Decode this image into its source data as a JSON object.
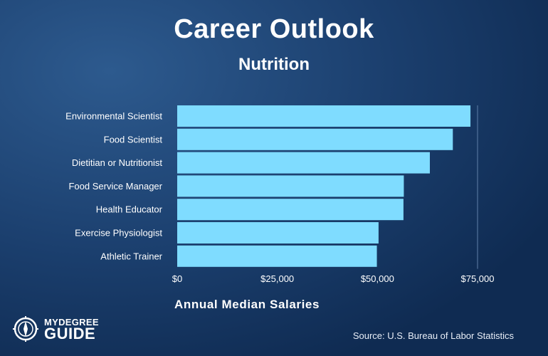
{
  "header": {
    "title": "Career Outlook",
    "subtitle": "Nutrition"
  },
  "chart_data": {
    "type": "bar",
    "orientation": "horizontal",
    "categories": [
      "Environmental Scientist",
      "Food Scientist",
      "Dietitian or Nutritionist",
      "Food Service Manager",
      "Health Educator",
      "Exercise Physiologist",
      "Athletic Trainer"
    ],
    "values": [
      73230,
      68830,
      63090,
      56590,
      56500,
      50280,
      49860
    ],
    "xlabel": "Annual Median Salaries",
    "xlim": [
      0,
      75000
    ],
    "ticks": [
      {
        "value": 0,
        "label": "$0"
      },
      {
        "value": 25000,
        "label": "$25,000"
      },
      {
        "value": 50000,
        "label": "$50,000"
      },
      {
        "value": 75000,
        "label": "$75,000"
      }
    ],
    "bar_color": "#7fdcff",
    "grid": false
  },
  "footer": {
    "source": "Source: U.S. Bureau of Labor Statistics",
    "logo_top": "MYDEGREE",
    "logo_bottom": "GUIDE"
  },
  "colors": {
    "background": "#163a66",
    "text": "#ffffff"
  }
}
